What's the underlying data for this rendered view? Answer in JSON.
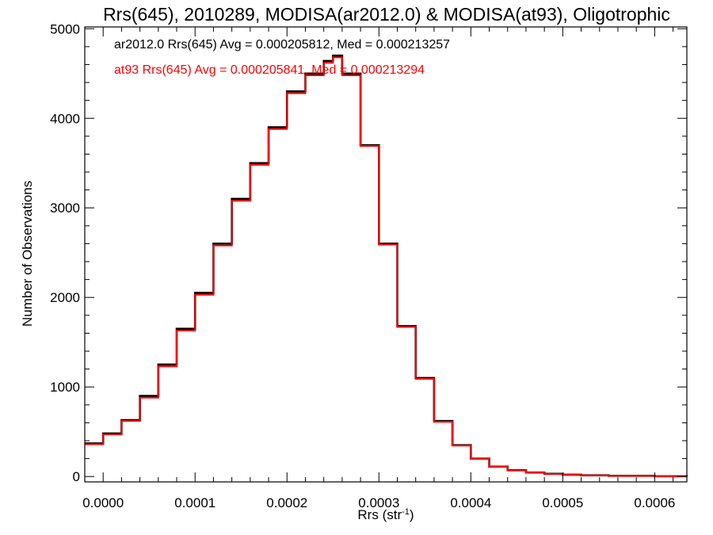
{
  "chart_data": {
    "type": "line",
    "title": "Rrs(645), 2010289, MODISA(ar2012.0) & MODISA(at93), Oligotrophic",
    "xlabel": "Rrs (str",
    "xlabel_sup": "-1",
    "xlabel_end": ")",
    "ylabel": "Number of Observations",
    "xlim": [
      -2e-05,
      0.000635
    ],
    "ylim": [
      -60,
      5020
    ],
    "x_ticks": [
      0.0,
      0.0001,
      0.0002,
      0.0003,
      0.0004,
      0.0005,
      0.0006
    ],
    "x_tick_labels": [
      "0.0000",
      "0.0001",
      "0.0002",
      "0.0003",
      "0.0004",
      "0.0005",
      "0.0006"
    ],
    "y_ticks": [
      0,
      1000,
      2000,
      3000,
      4000,
      5000
    ],
    "y_tick_labels": [
      "0",
      "1000",
      "2000",
      "3000",
      "4000",
      "5000"
    ],
    "grid": false,
    "step": true,
    "annotations": [
      {
        "text": "ar2012.0 Rrs(645) Avg = 0.000205812, Med = 0.000213257",
        "color": "#000000"
      },
      {
        "text": "at93 Rrs(645) Avg = 0.000205841, Med = 0.000213294",
        "color": "#ff0000"
      }
    ],
    "series": [
      {
        "color": "#000000",
        "x": [
          -2e-05,
          0.0,
          2e-05,
          4e-05,
          6e-05,
          8e-05,
          0.0001,
          0.00012,
          0.00014,
          0.00016,
          0.00018,
          0.0002,
          0.00022,
          0.00024,
          0.00025,
          0.00026,
          0.00028,
          0.0003,
          0.00032,
          0.00034,
          0.00036,
          0.00038,
          0.0004,
          0.00042,
          0.00044,
          0.00046,
          0.00048,
          0.0005,
          0.00052,
          0.00055,
          0.0006,
          0.000635
        ],
        "y": [
          370,
          480,
          630,
          900,
          1250,
          1650,
          2050,
          2600,
          3100,
          3500,
          3900,
          4300,
          4500,
          4640,
          4700,
          4500,
          3700,
          2600,
          1680,
          1100,
          620,
          350,
          200,
          110,
          70,
          45,
          30,
          20,
          14,
          8,
          3,
          1
        ]
      },
      {
        "color": "#ff0000",
        "x": [
          -2e-05,
          0.0,
          2e-05,
          4e-05,
          6e-05,
          8e-05,
          0.0001,
          0.00012,
          0.00014,
          0.00016,
          0.00018,
          0.0002,
          0.00022,
          0.00024,
          0.00025,
          0.00026,
          0.00028,
          0.0003,
          0.00032,
          0.00034,
          0.00036,
          0.00038,
          0.0004,
          0.00042,
          0.00044,
          0.00046,
          0.00048,
          0.0005,
          0.00052,
          0.00055,
          0.0006,
          0.000635
        ],
        "y": [
          360,
          470,
          620,
          880,
          1230,
          1630,
          2030,
          2580,
          3080,
          3480,
          3880,
          4280,
          4480,
          4620,
          4680,
          4480,
          3690,
          2590,
          1670,
          1090,
          610,
          345,
          198,
          108,
          68,
          44,
          29,
          19,
          13,
          7,
          3,
          1
        ]
      }
    ]
  }
}
